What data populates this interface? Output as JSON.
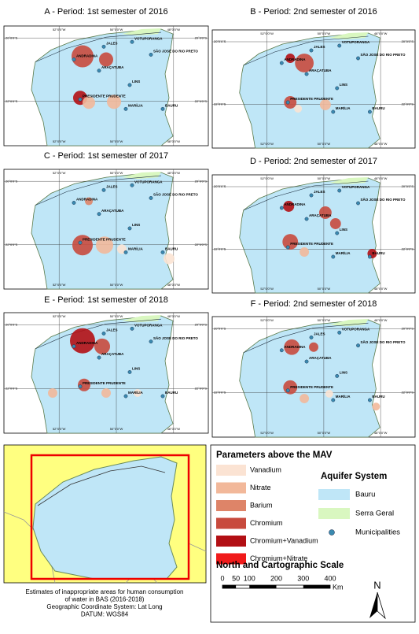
{
  "panels": [
    {
      "title": "A - Period: 1st semester of 2016"
    },
    {
      "title": "B - Period: 2nd semester of 2016"
    },
    {
      "title": "C - Period: 1st semester of 2017"
    },
    {
      "title": "D - Period: 2nd semester of 2017"
    },
    {
      "title": "E - Period: 1st semester of 2018"
    },
    {
      "title": "F - Period: 2nd semester of 2018"
    }
  ],
  "map": {
    "cities": [
      "JALES",
      "VOTUPORANGA",
      "SÃO JOSÉ DO RIO PRETO",
      "ANDRADINA",
      "ARAÇATUBA",
      "LINS",
      "PRESIDENTE PRUDENTE",
      "MARÍLIA",
      "BAURU"
    ],
    "lat": [
      "20°0'0\"S",
      "22°0'0\"S"
    ],
    "lon": [
      "52°0'0\"W",
      "50°0'0\"W",
      "48°0'0\"W"
    ]
  },
  "legend": {
    "title": "Parameters above the MAV",
    "parameters": [
      {
        "label": "Vanadium",
        "color": "#fbe3d3"
      },
      {
        "label": "Nitrate",
        "color": "#f2b89a"
      },
      {
        "label": "Barium",
        "color": "#de8468"
      },
      {
        "label": "Chromium",
        "color": "#c84a3d"
      },
      {
        "label": "Chromium+Vanadium",
        "color": "#b20f14"
      },
      {
        "label": "Chromium+Nitrate",
        "color": "#f01a1a"
      }
    ],
    "aquifer_title": "Aquifer System",
    "aquifers": [
      {
        "label": "Bauru",
        "color": "#bfe6f7"
      },
      {
        "label": "Serra Geral",
        "color": "#d9f7c0"
      }
    ],
    "municipalities": "Municipalities",
    "scale_title": "North and Cartographic Scale",
    "north": "N",
    "scale_labels": [
      "0",
      "50",
      "100",
      "200",
      "300",
      "400"
    ],
    "scale_unit": "Km"
  },
  "caption": [
    "Estimates of inappropriate areas for human consumption",
    "of water in BAS (2016-2018)",
    "Geographic Coordinate System: Lat Long",
    "DATUM:  WGS84"
  ]
}
